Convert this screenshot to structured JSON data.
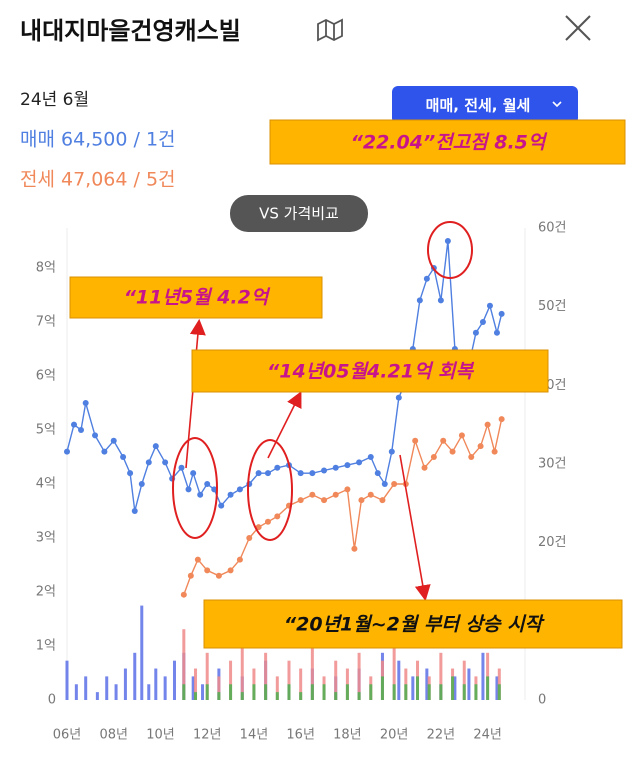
{
  "header": {
    "title": "내대지마을건영캐스빌",
    "date": "24년 6월",
    "sale": "매매 64,500 / 1건",
    "jeonse": "전세 47,064 / 5건",
    "filter": "매매, 전세, 월세",
    "compare": "VS 가격비교"
  },
  "annotations": [
    "“22.04”전고점 8.5억",
    "“11년5월 4.2억",
    "“14년05월4.21억 회복",
    "“20년1월~2월 부터 상승 시작"
  ],
  "chart_data": {
    "type": "line",
    "xlim": [
      2006,
      2025.6
    ],
    "xticks": [
      {
        "value": 2006,
        "label": "06년"
      },
      {
        "value": 2008,
        "label": "08년"
      },
      {
        "value": 2010,
        "label": "10년"
      },
      {
        "value": 2012,
        "label": "12년"
      },
      {
        "value": 2014,
        "label": "14년"
      },
      {
        "value": 2016,
        "label": "16년"
      },
      {
        "value": 2018,
        "label": "18년"
      },
      {
        "value": 2020,
        "label": "20년"
      },
      {
        "value": 2022,
        "label": "22년"
      },
      {
        "value": 2024,
        "label": "24년"
      }
    ],
    "ylim": [
      0,
      8.74
    ],
    "yticks": [
      0,
      {
        "value": 1,
        "label": "1억"
      },
      {
        "value": 2,
        "label": "2억"
      },
      {
        "value": 3,
        "label": "3억"
      },
      {
        "value": 4,
        "label": "4억"
      },
      {
        "value": 5,
        "label": "5억"
      },
      {
        "value": 6,
        "label": "6억"
      },
      {
        "value": 7,
        "label": "7억"
      },
      {
        "value": 8,
        "label": "8억"
      }
    ],
    "y2lim": [
      0,
      60
    ],
    "y2ticks": [
      0,
      {
        "value": 20,
        "label": "20건"
      },
      {
        "value": 30,
        "label": "30건"
      },
      {
        "value": 40,
        "label": "40건"
      },
      {
        "value": 50,
        "label": "50건"
      },
      {
        "value": 60,
        "label": "60건"
      }
    ],
    "grid": false,
    "series": [
      {
        "type": "line",
        "color": "#4f7fe0",
        "x": [
          2006.0,
          2006.3,
          2006.6,
          2006.8,
          2007.2,
          2007.6,
          2008.0,
          2008.4,
          2008.7,
          2008.9,
          2009.2,
          2009.5,
          2009.8,
          2010.2,
          2010.5,
          2010.9,
          2011.2,
          2011.4,
          2011.7,
          2012.0,
          2012.3,
          2012.6,
          2013.0,
          2013.4,
          2013.8,
          2014.2,
          2014.6,
          2015.0,
          2015.5,
          2016.0,
          2016.5,
          2017.0,
          2017.5,
          2018.0,
          2018.5,
          2019.0,
          2019.3,
          2019.6,
          2019.9,
          2020.2,
          2020.5,
          2020.8,
          2021.1,
          2021.4,
          2021.7,
          2022.0,
          2022.3,
          2022.6,
          2022.9,
          2023.2,
          2023.5,
          2023.8,
          2024.1,
          2024.4,
          2024.6
        ],
        "values": [
          4.6,
          5.1,
          5.0,
          5.5,
          4.9,
          4.6,
          4.8,
          4.5,
          4.2,
          3.5,
          4.0,
          4.4,
          4.7,
          4.4,
          4.1,
          4.3,
          3.9,
          4.2,
          3.8,
          4.0,
          3.9,
          3.6,
          3.8,
          3.9,
          4.0,
          4.2,
          4.2,
          4.3,
          4.35,
          4.2,
          4.2,
          4.25,
          4.3,
          4.35,
          4.4,
          4.5,
          4.2,
          4.0,
          4.6,
          5.6,
          5.9,
          6.5,
          7.4,
          7.8,
          8.0,
          7.4,
          8.5,
          6.5,
          6.4,
          6.2,
          6.8,
          7.0,
          7.3,
          6.8,
          7.15
        ]
      },
      {
        "type": "line",
        "color": "#f0885a",
        "x": [
          2011.0,
          2011.3,
          2011.6,
          2012.0,
          2012.5,
          2013.0,
          2013.4,
          2013.8,
          2014.2,
          2014.6,
          2015.0,
          2015.5,
          2016.0,
          2016.5,
          2017.0,
          2017.5,
          2018.0,
          2018.3,
          2018.6,
          2019.0,
          2019.5,
          2020.0,
          2020.5,
          2020.9,
          2021.3,
          2021.7,
          2022.1,
          2022.5,
          2022.9,
          2023.3,
          2023.7,
          2024.0,
          2024.3,
          2024.6
        ],
        "values": [
          1.95,
          2.3,
          2.6,
          2.4,
          2.3,
          2.4,
          2.6,
          3.0,
          3.2,
          3.3,
          3.4,
          3.6,
          3.7,
          3.8,
          3.7,
          3.8,
          3.9,
          2.8,
          3.7,
          3.8,
          3.7,
          4.0,
          4.0,
          4.8,
          4.3,
          4.5,
          4.8,
          4.6,
          4.9,
          4.5,
          4.7,
          5.1,
          4.6,
          5.2
        ]
      },
      {
        "type": "bar",
        "axis": "y2",
        "color": "#5a6fe6",
        "x": [
          2006.0,
          2006.4,
          2006.8,
          2007.3,
          2007.7,
          2008.1,
          2008.5,
          2008.9,
          2009.2,
          2009.5,
          2009.8,
          2010.2,
          2010.6,
          2011.0,
          2011.4,
          2011.8,
          2012.5,
          2013.5,
          2014.5,
          2015.5,
          2016.5,
          2017.5,
          2018.5,
          2019.5,
          2020.2,
          2020.8,
          2021.4,
          2022.0,
          2022.6,
          2023.2,
          2023.8,
          2024.4
        ],
        "values": [
          5,
          2,
          3,
          1,
          3,
          2,
          4,
          6,
          12,
          2,
          4,
          3,
          5,
          6,
          3,
          2,
          4,
          3,
          5,
          2,
          4,
          3,
          4,
          6,
          5,
          3,
          4,
          2,
          3,
          4,
          6,
          3
        ]
      },
      {
        "type": "bar",
        "axis": "y2",
        "color": "#f08a8a",
        "x": [
          2011.0,
          2011.5,
          2012.0,
          2012.5,
          2013.0,
          2013.5,
          2014.0,
          2014.5,
          2015.0,
          2015.5,
          2016.0,
          2016.5,
          2017.0,
          2017.5,
          2018.0,
          2018.5,
          2019.0,
          2019.5,
          2020.0,
          2020.5,
          2021.0,
          2021.5,
          2022.0,
          2022.5,
          2023.0,
          2023.5,
          2024.0,
          2024.5
        ],
        "values": [
          9,
          4,
          6,
          3,
          5,
          8,
          4,
          6,
          3,
          5,
          4,
          7,
          3,
          5,
          4,
          6,
          3,
          5,
          7,
          4,
          5,
          3,
          6,
          4,
          5,
          3,
          6,
          4
        ]
      },
      {
        "type": "bar",
        "axis": "y2",
        "color": "#4caf50",
        "x": [
          2011.0,
          2011.5,
          2012.0,
          2012.5,
          2013.0,
          2013.5,
          2014.0,
          2014.5,
          2015.0,
          2015.5,
          2016.0,
          2016.5,
          2017.0,
          2017.5,
          2018.0,
          2018.5,
          2019.0,
          2019.5,
          2020.0,
          2020.5,
          2021.0,
          2021.5,
          2022.0,
          2022.5,
          2023.0,
          2023.5,
          2024.0,
          2024.5
        ],
        "values": [
          2,
          1,
          2,
          1,
          2,
          1,
          2,
          2,
          1,
          2,
          1,
          2,
          2,
          1,
          2,
          1,
          2,
          3,
          2,
          2,
          3,
          2,
          2,
          3,
          2,
          2,
          3,
          2
        ]
      }
    ]
  }
}
